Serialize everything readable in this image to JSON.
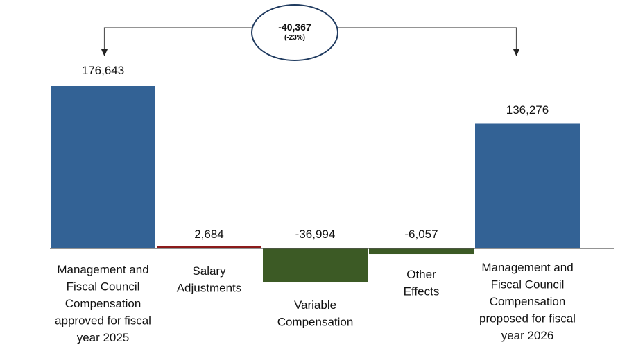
{
  "chart_data": {
    "type": "waterfall",
    "title": "",
    "xlabel": "",
    "ylabel": "",
    "grid": false,
    "ylim": [
      -40000,
      200000
    ],
    "categories": [
      [
        "Management and",
        "Fiscal Council",
        "Compensation",
        "approved for fiscal",
        "year 2025"
      ],
      [
        "Salary",
        "Adjustments"
      ],
      [
        "Variable",
        "Compensation"
      ],
      [
        "Other",
        "Effects"
      ],
      [
        "Management and",
        "Fiscal Council",
        "Compensation",
        "proposed for fiscal",
        "year 2026"
      ]
    ],
    "values": [
      176643,
      2684,
      -36994,
      -6057,
      136276
    ],
    "value_labels": [
      "176,643",
      "2,684",
      "-36,994",
      "-6,057",
      "136,276"
    ],
    "kinds": [
      "total",
      "increase",
      "decrease",
      "decrease",
      "total"
    ],
    "difference": {
      "value": "-40,367",
      "percent": "(-23%)"
    },
    "colors": {
      "total": "#336295",
      "increase": "#8b1a1a",
      "decrease": "#3c5a25",
      "axis": "#555555",
      "bracket": "#555555"
    }
  }
}
